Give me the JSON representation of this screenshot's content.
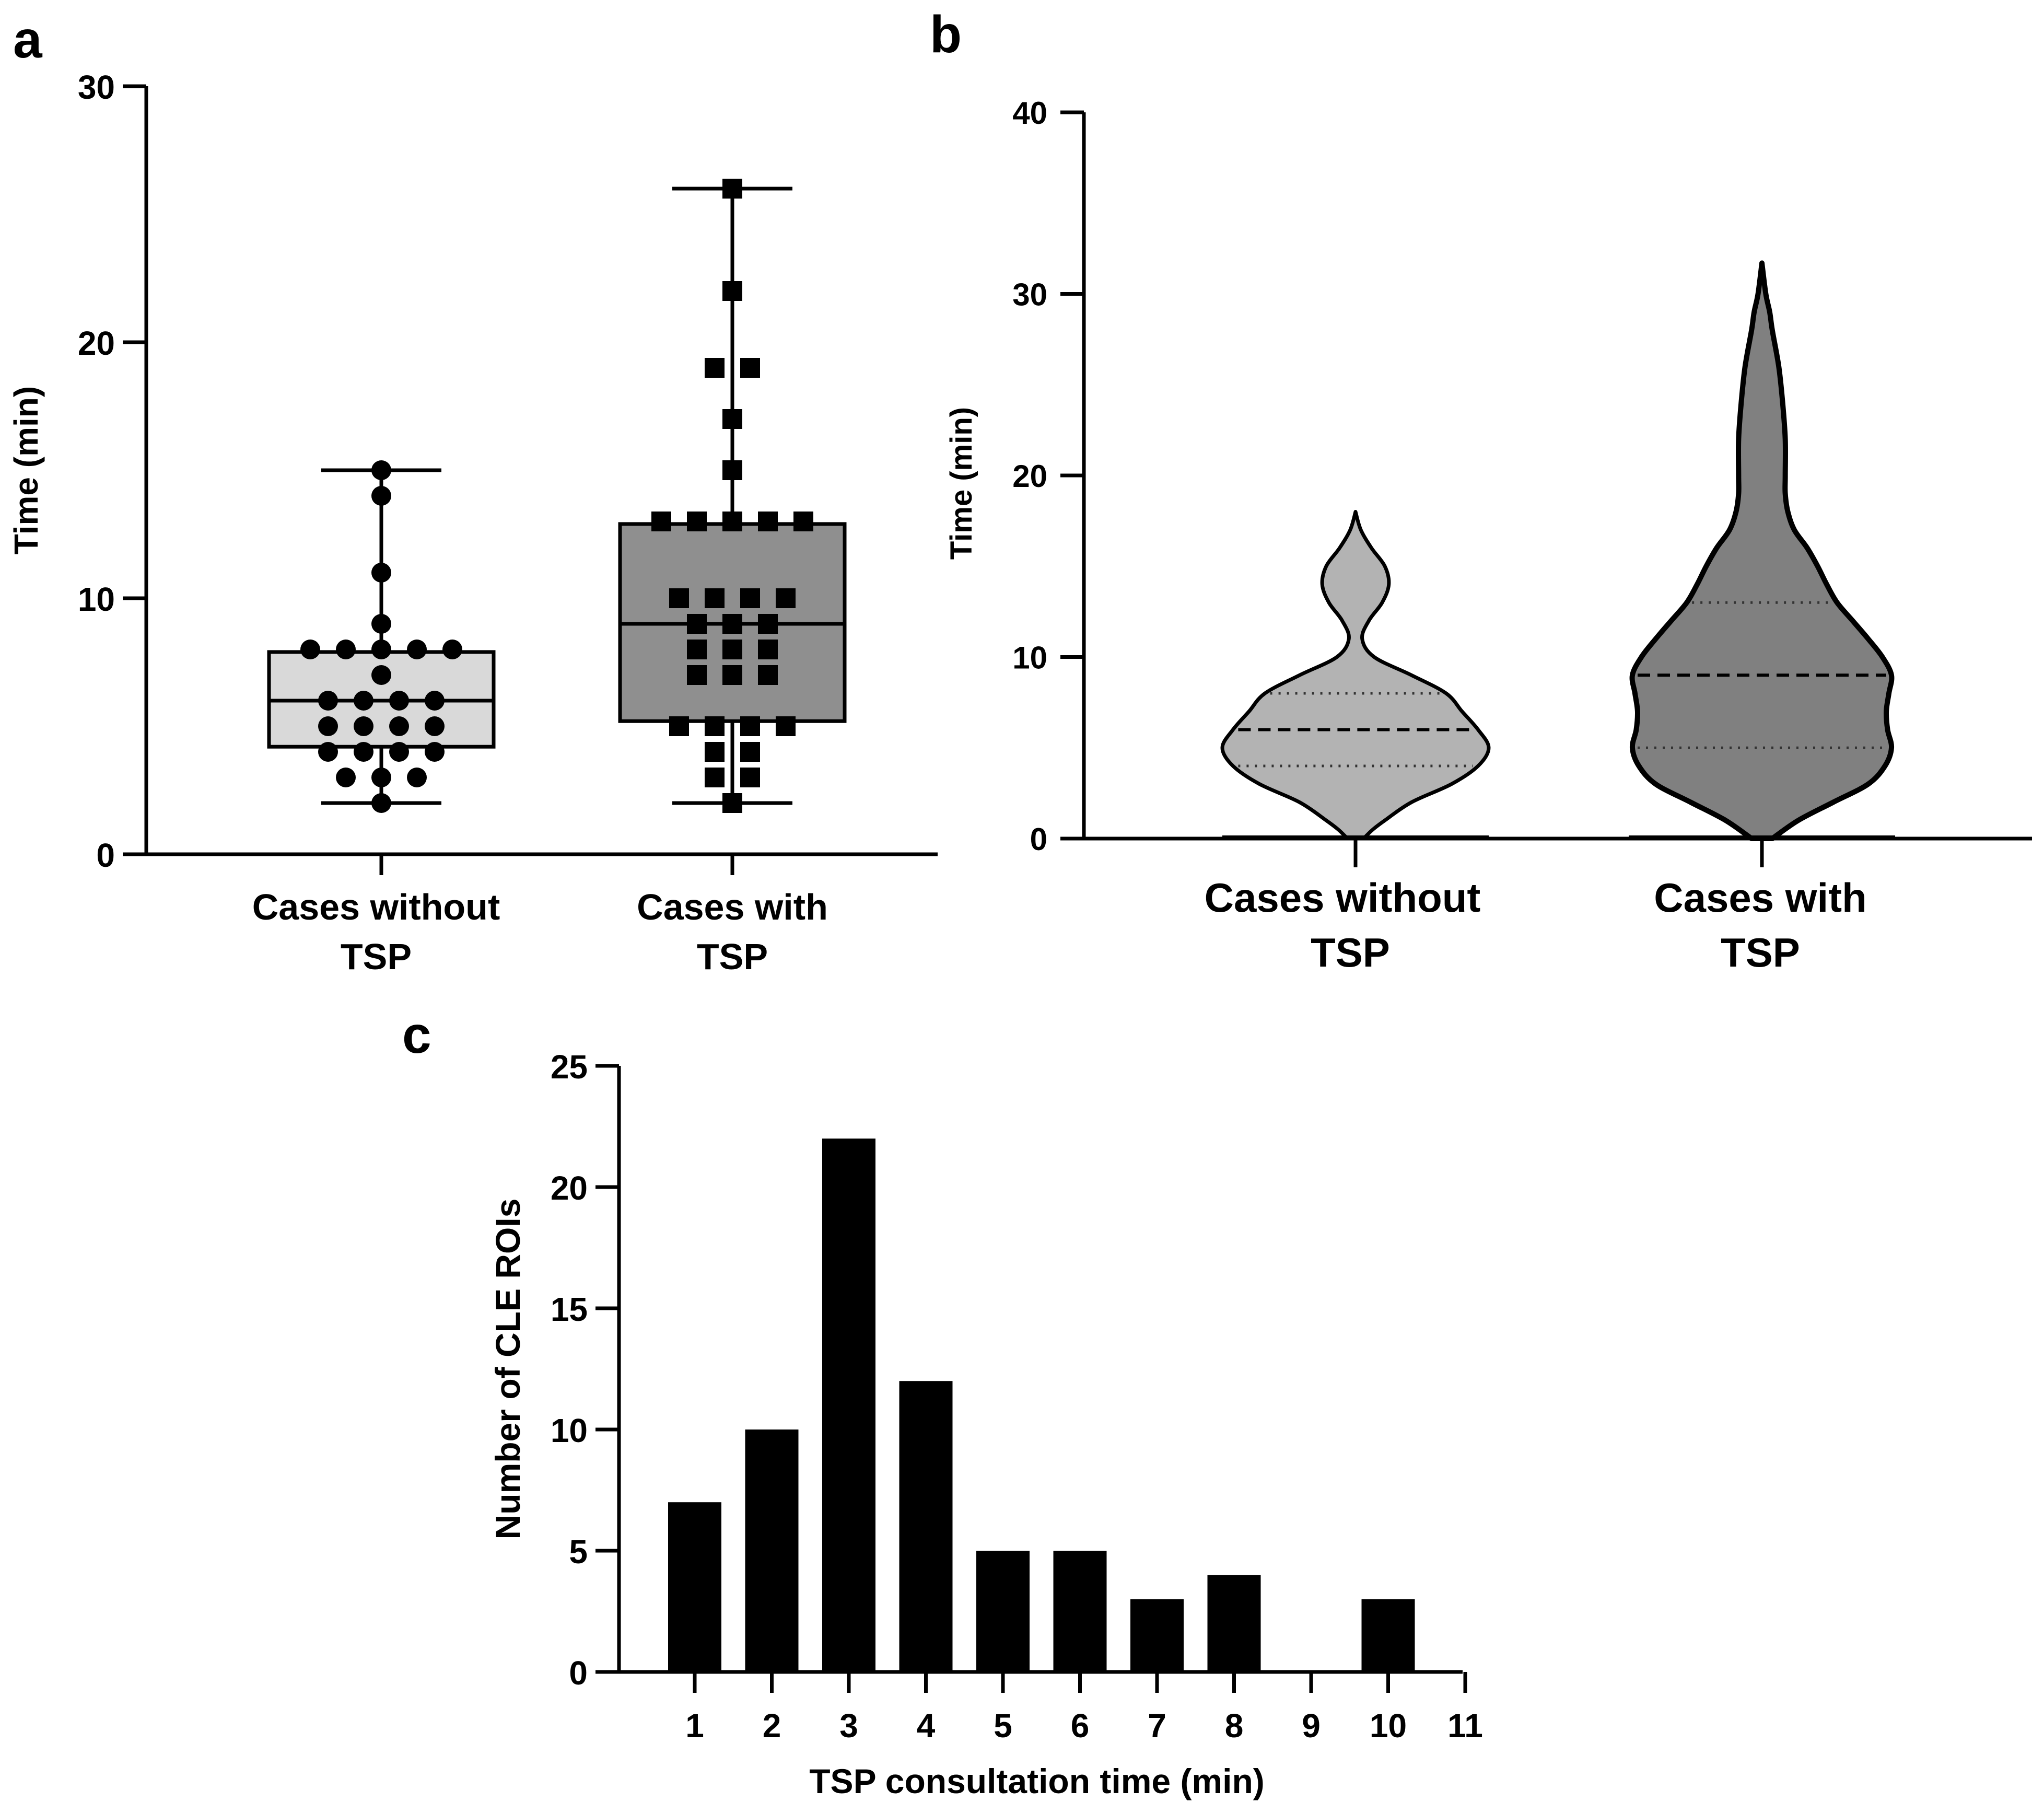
{
  "colors": {
    "ink": "#000000",
    "box_without": "#d9d9d9",
    "box_with": "#8f8f8f",
    "violin_without": "#b3b3b3",
    "violin_with": "#808080"
  },
  "chart_data": [
    {
      "panel": "a",
      "type": "box",
      "title": "",
      "xlabel": "",
      "ylabel": "Time (min)",
      "ylim": [
        0,
        30
      ],
      "yticks": [
        "0",
        "10",
        "20",
        "30"
      ],
      "categories": [
        {
          "line1": "Cases without",
          "line2": "TSP"
        },
        {
          "line1": "Cases with",
          "line2": "TSP"
        }
      ],
      "series": [
        {
          "name": "Cases without TSP",
          "marker": "circle",
          "min": 2,
          "q1": 4.2,
          "median": 6,
          "q3": 7.9,
          "max": 15,
          "points": [
            15,
            14,
            11,
            9,
            8,
            8,
            8,
            8,
            8,
            7,
            6,
            6,
            6,
            6,
            5,
            5,
            5,
            5,
            4,
            4,
            4,
            4,
            3,
            3,
            3,
            2
          ]
        },
        {
          "name": "Cases with TSP",
          "marker": "square",
          "min": 2,
          "q1": 5.2,
          "median": 9,
          "q3": 12.9,
          "max": 26,
          "points": [
            26,
            22,
            19,
            19,
            17,
            15,
            13,
            13,
            13,
            13,
            13,
            10,
            10,
            10,
            10,
            9,
            9,
            9,
            8,
            8,
            8,
            7,
            7,
            7,
            5,
            5,
            5,
            5,
            4,
            4,
            3,
            3,
            2
          ]
        }
      ]
    },
    {
      "panel": "b",
      "type": "violin",
      "title": "",
      "xlabel": "",
      "ylabel": "Time (min)",
      "ylim": [
        0,
        40
      ],
      "yticks": [
        "0",
        "10",
        "20",
        "30",
        "40"
      ],
      "categories": [
        {
          "line1": "Cases without",
          "line2": "TSP"
        },
        {
          "line1": "Cases with",
          "line2": "TSP"
        }
      ],
      "series": [
        {
          "name": "Cases without TSP",
          "range": [
            0,
            18
          ],
          "q1": 4,
          "median": 6,
          "q3": 8,
          "density": [
            [
              0,
              0.06
            ],
            [
              0.5,
              0.13
            ],
            [
              1,
              0.22
            ],
            [
              2,
              0.42
            ],
            [
              3,
              0.72
            ],
            [
              4,
              0.92
            ],
            [
              5,
              1.0
            ],
            [
              6,
              0.92
            ],
            [
              7,
              0.8
            ],
            [
              8,
              0.68
            ],
            [
              9,
              0.42
            ],
            [
              10,
              0.14
            ],
            [
              11,
              0.05
            ],
            [
              12,
              0.1
            ],
            [
              13,
              0.2
            ],
            [
              14,
              0.25
            ],
            [
              15,
              0.22
            ],
            [
              16,
              0.12
            ],
            [
              17,
              0.04
            ],
            [
              18,
              0
            ]
          ]
        },
        {
          "name": "Cases with TSP",
          "range": [
            0,
            31.7
          ],
          "q1": 5,
          "median": 9,
          "q3": 13,
          "density": [
            [
              0,
              0.08
            ],
            [
              1,
              0.28
            ],
            [
              2,
              0.55
            ],
            [
              3,
              0.82
            ],
            [
              4,
              0.95
            ],
            [
              5,
              1.0
            ],
            [
              6,
              0.97
            ],
            [
              7,
              0.96
            ],
            [
              8,
              0.98
            ],
            [
              9,
              1.0
            ],
            [
              10,
              0.93
            ],
            [
              11,
              0.82
            ],
            [
              12,
              0.7
            ],
            [
              13,
              0.58
            ],
            [
              14,
              0.5
            ],
            [
              15,
              0.43
            ],
            [
              16,
              0.35
            ],
            [
              17,
              0.25
            ],
            [
              18,
              0.2
            ],
            [
              19,
              0.18
            ],
            [
              20,
              0.18
            ],
            [
              22,
              0.18
            ],
            [
              24,
              0.16
            ],
            [
              26,
              0.13
            ],
            [
              28,
              0.08
            ],
            [
              29,
              0.06
            ],
            [
              30,
              0.03
            ],
            [
              31.7,
              0
            ]
          ]
        }
      ]
    },
    {
      "panel": "c",
      "type": "bar",
      "title": "",
      "xlabel": "TSP consultation time (min)",
      "ylabel": "Number of CLE ROIs",
      "ylim": [
        0,
        25
      ],
      "yticks": [
        "0",
        "5",
        "10",
        "15",
        "20",
        "25"
      ],
      "categories": [
        "1",
        "2",
        "3",
        "4",
        "5",
        "6",
        "7",
        "8",
        "9",
        "10",
        "11"
      ],
      "values": [
        7,
        10,
        22,
        12,
        5,
        5,
        3,
        4,
        0,
        3,
        0
      ]
    }
  ]
}
